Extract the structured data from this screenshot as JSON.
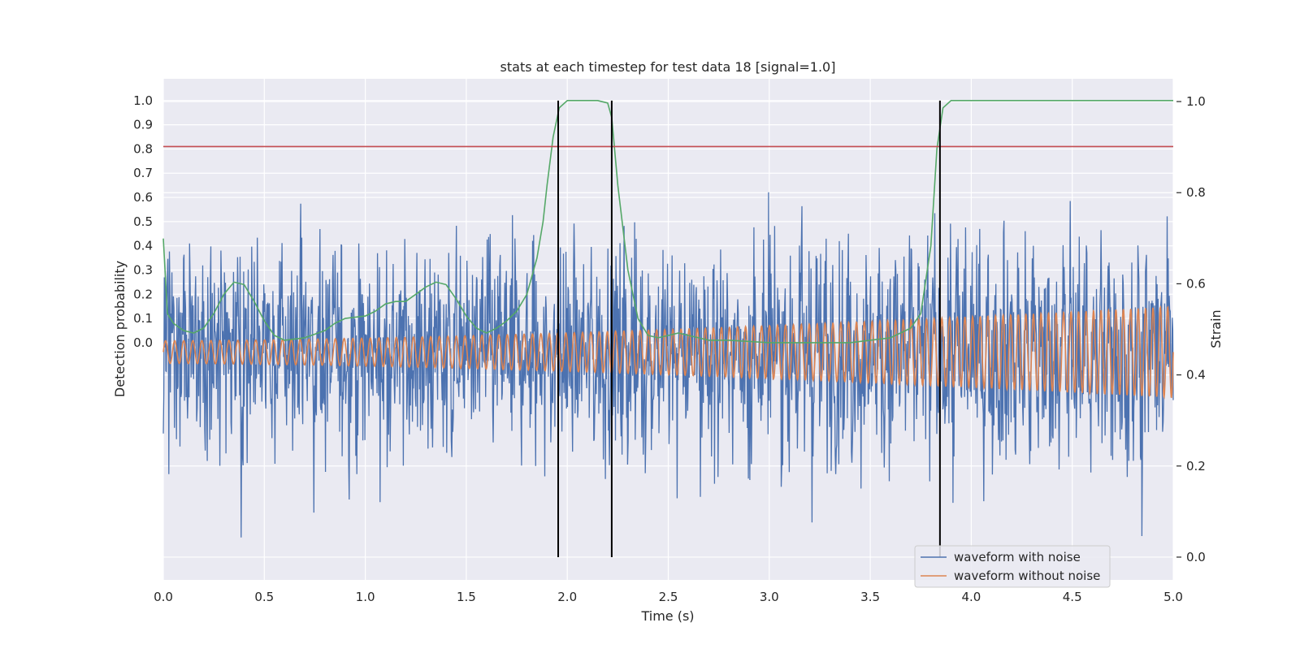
{
  "chart_data": {
    "type": "line",
    "title": "stats at each timestep for test data 18 [signal=1.0]",
    "xlabel": "Time (s)",
    "ylabel_left": "Detection probability",
    "ylabel_right": "Strain",
    "xlim": [
      0.0,
      5.0
    ],
    "xticks": [
      "0.0",
      "0.5",
      "1.0",
      "1.5",
      "2.0",
      "2.5",
      "3.0",
      "3.5",
      "4.0",
      "4.5",
      "5.0"
    ],
    "left_axis": {
      "ticks": [
        "0.0",
        "0.1",
        "0.2",
        "0.3",
        "0.4",
        "0.5",
        "0.6",
        "0.7",
        "0.8",
        "0.9",
        "1.0"
      ],
      "ylim": [
        -0.98,
        1.09
      ]
    },
    "right_axis": {
      "ticks": [
        "0.0",
        "0.2",
        "0.4",
        "0.6",
        "0.8",
        "1.0"
      ],
      "ylim": [
        -0.05,
        1.05
      ]
    },
    "grid": true,
    "legend_position": "lower-right",
    "series": [
      {
        "name": "waveform with noise",
        "axis": "right",
        "color": "#4c72b0",
        "kind": "noise",
        "samples": 2000,
        "center": 0.44,
        "typical_range": [
          0.2,
          0.79
        ],
        "extremes": [
          0.0,
          0.84
        ]
      },
      {
        "name": "waveform without noise",
        "axis": "right",
        "color": "#dd8452",
        "kind": "chirp",
        "center": 0.45,
        "amplitude_start": 0.025,
        "amplitude_end": 0.1,
        "cycles_approx": 124
      },
      {
        "axis": "left",
        "color": "#55a868",
        "x": [
          0.0,
          0.02,
          0.05,
          0.1,
          0.15,
          0.2,
          0.25,
          0.3,
          0.35,
          0.4,
          0.45,
          0.5,
          0.55,
          0.6,
          0.7,
          0.8,
          0.85,
          0.9,
          1.0,
          1.05,
          1.1,
          1.15,
          1.2,
          1.25,
          1.3,
          1.35,
          1.4,
          1.45,
          1.5,
          1.55,
          1.6,
          1.65,
          1.7,
          1.75,
          1.8,
          1.85,
          1.88,
          1.9,
          1.93,
          1.96,
          2.0,
          2.05,
          2.1,
          2.15,
          2.2,
          2.22,
          2.25,
          2.3,
          2.35,
          2.4,
          2.45,
          2.5,
          2.55,
          2.6,
          2.7,
          2.8,
          3.0,
          3.2,
          3.4,
          3.5,
          3.6,
          3.7,
          3.75,
          3.8,
          3.83,
          3.86,
          3.9,
          4.0,
          4.5,
          5.0
        ],
        "y": [
          0.43,
          0.12,
          0.08,
          0.05,
          0.04,
          0.06,
          0.12,
          0.2,
          0.25,
          0.24,
          0.17,
          0.09,
          0.03,
          0.01,
          0.02,
          0.05,
          0.08,
          0.1,
          0.11,
          0.13,
          0.16,
          0.17,
          0.17,
          0.2,
          0.23,
          0.25,
          0.24,
          0.18,
          0.11,
          0.06,
          0.04,
          0.06,
          0.09,
          0.13,
          0.2,
          0.35,
          0.5,
          0.65,
          0.85,
          0.97,
          1.0,
          1.0,
          1.0,
          1.0,
          0.99,
          0.93,
          0.65,
          0.3,
          0.1,
          0.03,
          0.02,
          0.03,
          0.04,
          0.03,
          0.01,
          0.01,
          0.0,
          0.0,
          0.0,
          0.01,
          0.02,
          0.06,
          0.12,
          0.4,
          0.8,
          0.97,
          1.0,
          1.0,
          1.0,
          1.0
        ]
      }
    ],
    "threshold_line": {
      "axis": "left",
      "value": 0.81,
      "color": "#c44e52"
    },
    "vertical_markers": {
      "x": [
        1.955,
        2.22,
        3.845
      ],
      "color": "#000000"
    }
  }
}
